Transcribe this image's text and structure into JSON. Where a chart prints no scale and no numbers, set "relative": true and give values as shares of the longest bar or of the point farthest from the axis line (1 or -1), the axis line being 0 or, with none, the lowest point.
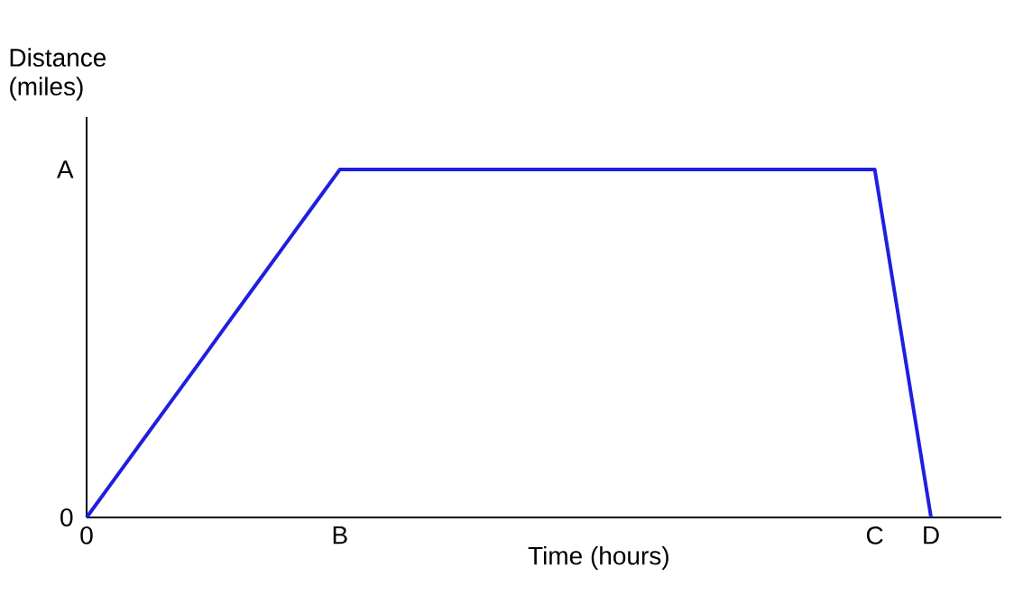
{
  "chart_data": {
    "type": "line",
    "xlabel": "Time (hours)",
    "ylabel": "Distance (miles)",
    "relative": true,
    "categories": [
      "0",
      null,
      null,
      null,
      null,
      null,
      null,
      null,
      null,
      "B",
      null,
      null,
      null,
      null,
      null,
      null,
      null,
      null,
      null,
      null,
      null,
      null,
      null,
      null,
      null,
      null,
      null,
      null,
      "C",
      null,
      "D",
      null,
      null
    ],
    "series": [
      {
        "color": "#1f1fe0",
        "values": [
          0,
          0.111,
          0.222,
          0.333,
          0.444,
          0.556,
          0.667,
          0.778,
          0.889,
          1,
          1,
          1,
          1,
          1,
          1,
          1,
          1,
          1,
          1,
          1,
          1,
          1,
          1,
          1,
          1,
          1,
          1,
          1,
          1,
          0.5,
          0,
          null,
          null
        ]
      }
    ],
    "annotations": [
      "A",
      "0"
    ],
    "grid": false,
    "marker": "none",
    "line_style": "solid"
  }
}
